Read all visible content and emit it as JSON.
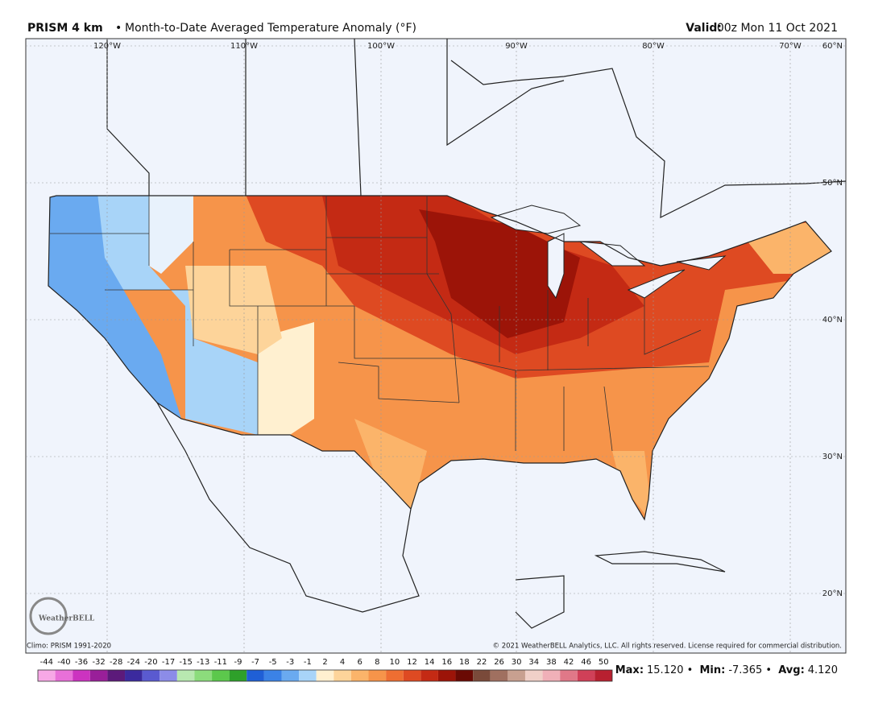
{
  "header": {
    "product": "PRISM 4 km",
    "separator": "•",
    "title": "Month-to-Date Averaged Temperature Anomaly (°F)",
    "valid_label": "Valid:",
    "valid_time": "00z Mon 11 Oct 2021"
  },
  "map": {
    "longitude_labels": [
      "120°W",
      "110°W",
      "100°W",
      "90°W",
      "80°W",
      "70°W"
    ],
    "latitude_labels": [
      "60°N",
      "50°N",
      "40°N",
      "30°N",
      "20°N"
    ],
    "logo": "WeatherBELL"
  },
  "footer": {
    "climo": "Climo: PRISM 1991-2020",
    "copyright": "© 2021 WeatherBELL Analytics, LLC. All rights reserved. License required for commercial distribution."
  },
  "colorbar": {
    "ticks": [
      -44,
      -40,
      -36,
      -32,
      -28,
      -24,
      -20,
      -17,
      -15,
      -13,
      -11,
      -9,
      -7,
      -5,
      -3,
      -1,
      2,
      4,
      6,
      8,
      10,
      12,
      14,
      16,
      18,
      22,
      26,
      30,
      34,
      38,
      42,
      46,
      50
    ],
    "colors": [
      "#f7a8e6",
      "#e870d8",
      "#cc33c0",
      "#991f99",
      "#5c1a7a",
      "#3b2a9e",
      "#5a5ad0",
      "#8c8ce8",
      "#b8e8b0",
      "#8cdc7c",
      "#5cc84c",
      "#2ea02a",
      "#1f5fd6",
      "#3b82e6",
      "#6aaaf0",
      "#a8d4f8",
      "#fff0d0",
      "#fdd49a",
      "#fbb46a",
      "#f6944a",
      "#ee6e32",
      "#de4a22",
      "#c42a14",
      "#9c1408",
      "#6a0a04",
      "#7a4a3a",
      "#a07060",
      "#c8a090",
      "#f0d0c8",
      "#f0b0b8",
      "#e07888",
      "#d04058",
      "#b82030"
    ]
  },
  "stats": {
    "separator": "•",
    "items": [
      {
        "label": "Max:",
        "value": "15.120"
      },
      {
        "label": "Min:",
        "value": "-7.365"
      },
      {
        "label": "Avg:",
        "value": "4.120"
      }
    ]
  }
}
